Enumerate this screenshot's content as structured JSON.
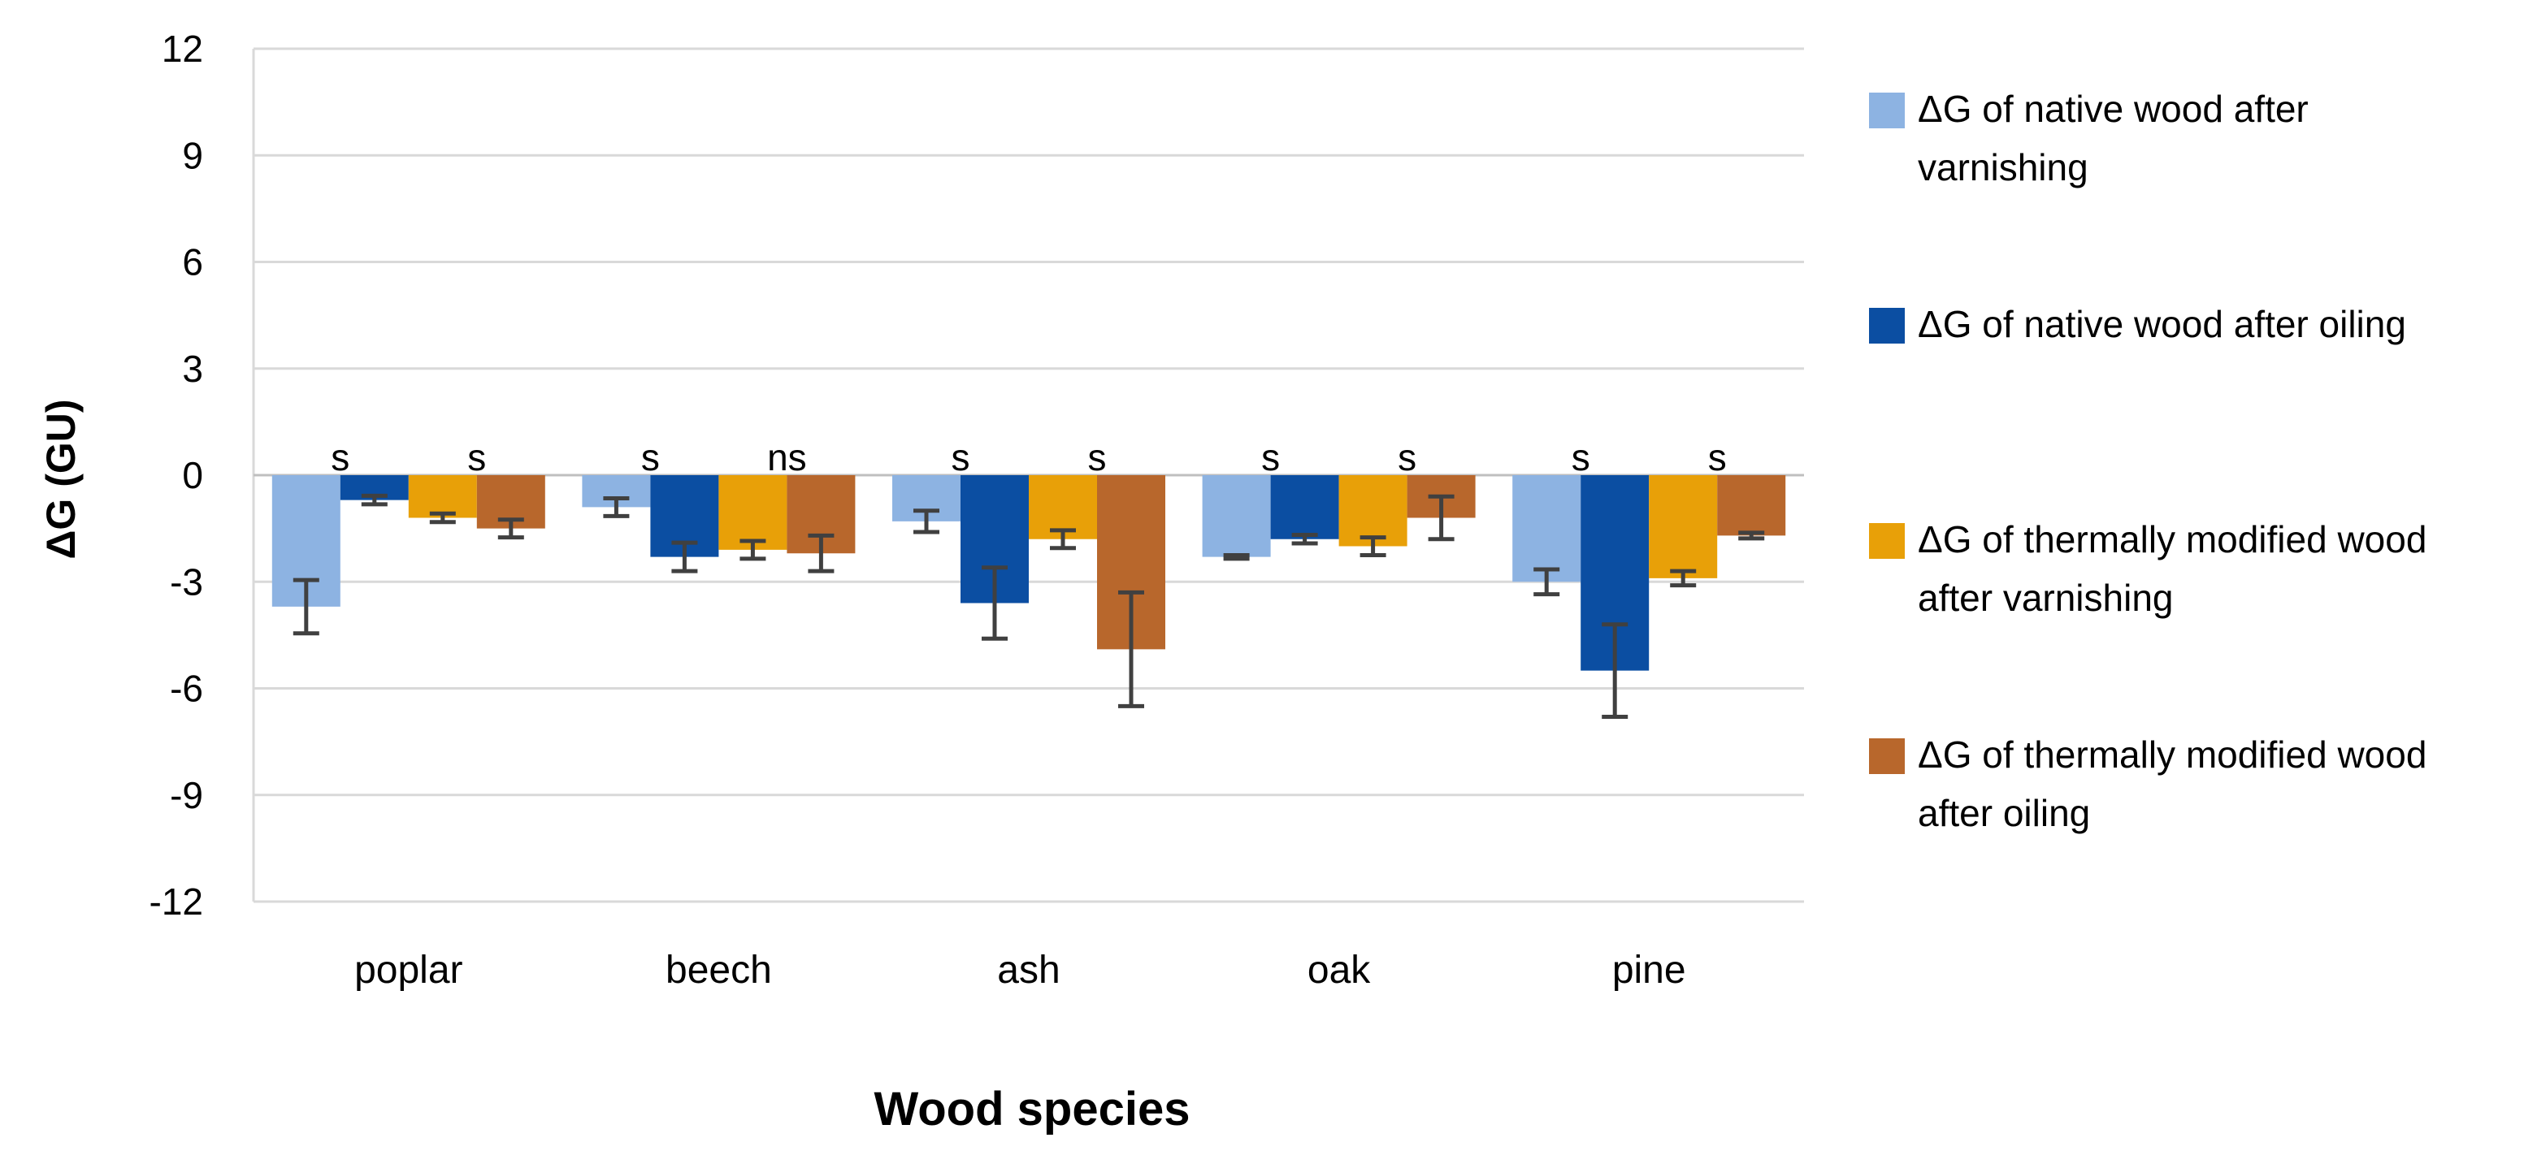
{
  "chart_data": {
    "type": "bar",
    "xlabel": "Wood species",
    "ylabel": "ΔG (GU)",
    "ylim": [
      -12,
      12
    ],
    "yticks": [
      12,
      9,
      6,
      3,
      0,
      -3,
      -6,
      -9,
      -12
    ],
    "categories": [
      "poplar",
      "beech",
      "ash",
      "oak",
      "pine"
    ],
    "grid": true,
    "legend_position": "right",
    "series": [
      {
        "name": "ΔG of native wood after varnishing",
        "color": "#8db3e2",
        "values": [
          -3.7,
          -0.9,
          -1.3,
          -2.3,
          -3.0
        ],
        "errors": [
          0.75,
          0.25,
          0.3,
          0.05,
          0.35
        ]
      },
      {
        "name": "ΔG of native wood after oiling",
        "color": "#0b4ea2",
        "values": [
          -0.7,
          -2.3,
          -3.6,
          -1.8,
          -5.5
        ],
        "errors": [
          0.12,
          0.4,
          1.0,
          0.12,
          1.3
        ]
      },
      {
        "name": "ΔG of thermally modified wood after varnishing",
        "color": "#e8a008",
        "values": [
          -1.2,
          -2.1,
          -1.8,
          -2.0,
          -2.9
        ],
        "errors": [
          0.12,
          0.25,
          0.25,
          0.25,
          0.2
        ]
      },
      {
        "name": "ΔG of thermally modified wood after oiling",
        "color": "#b8672c",
        "values": [
          -1.5,
          -2.2,
          -4.9,
          -1.2,
          -1.7
        ],
        "errors": [
          0.25,
          0.5,
          1.6,
          0.6,
          0.08
        ]
      }
    ],
    "annotations": [
      {
        "category": "poplar",
        "after_series": 0,
        "text": "s"
      },
      {
        "category": "poplar",
        "after_series": 2,
        "text": "s"
      },
      {
        "category": "beech",
        "after_series": 0,
        "text": "s"
      },
      {
        "category": "beech",
        "after_series": 2,
        "text": "ns"
      },
      {
        "category": "ash",
        "after_series": 0,
        "text": "s"
      },
      {
        "category": "ash",
        "after_series": 2,
        "text": "s"
      },
      {
        "category": "oak",
        "after_series": 0,
        "text": "s"
      },
      {
        "category": "oak",
        "after_series": 2,
        "text": "s"
      },
      {
        "category": "pine",
        "after_series": 0,
        "text": "s"
      },
      {
        "category": "pine",
        "after_series": 2,
        "text": "s"
      }
    ]
  }
}
